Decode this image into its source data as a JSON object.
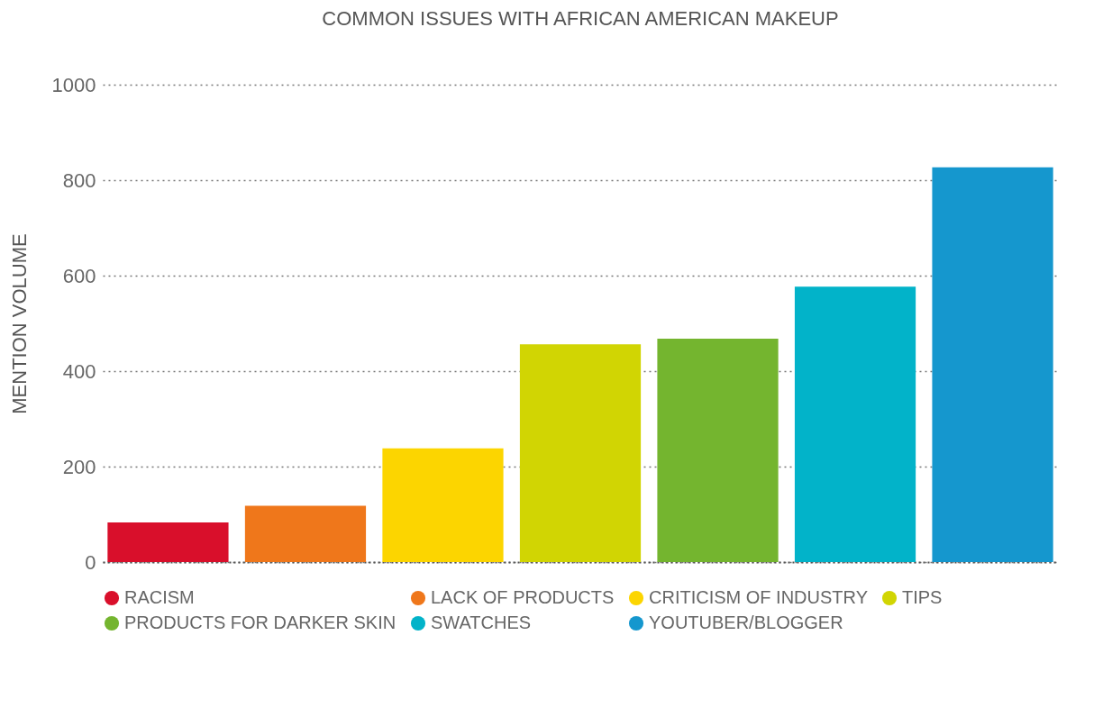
{
  "chart_data": {
    "type": "bar",
    "title": "COMMON ISSUES WITH AFRICAN AMERICAN MAKEUP",
    "ylabel": "MENTION VOLUME",
    "categories": [
      null
    ],
    "series": [
      {
        "name": "RACISM",
        "color": "#d90f2b",
        "values": [
          83
        ]
      },
      {
        "name": "LACK OF PRODUCTS",
        "color": "#ef771b",
        "values": [
          118
        ]
      },
      {
        "name": "CRITICISM OF INDUSTRY",
        "color": "#fcd500",
        "values": [
          238
        ]
      },
      {
        "name": "TIPS",
        "color": "#d1d503",
        "values": [
          456
        ]
      },
      {
        "name": "PRODUCTS FOR DARKER SKIN",
        "color": "#74b52f",
        "values": [
          468
        ]
      },
      {
        "name": "SWATCHES",
        "color": "#02b3c9",
        "values": [
          577
        ]
      },
      {
        "name": "YOUTUBER/BLOGGER",
        "color": "#1597ce",
        "values": [
          827
        ]
      }
    ],
    "ylim": [
      0,
      1000
    ],
    "yticks": [
      0,
      200,
      400,
      600,
      800,
      1000
    ],
    "grid": "y",
    "legend": "bottom",
    "tick_labels": "y"
  }
}
